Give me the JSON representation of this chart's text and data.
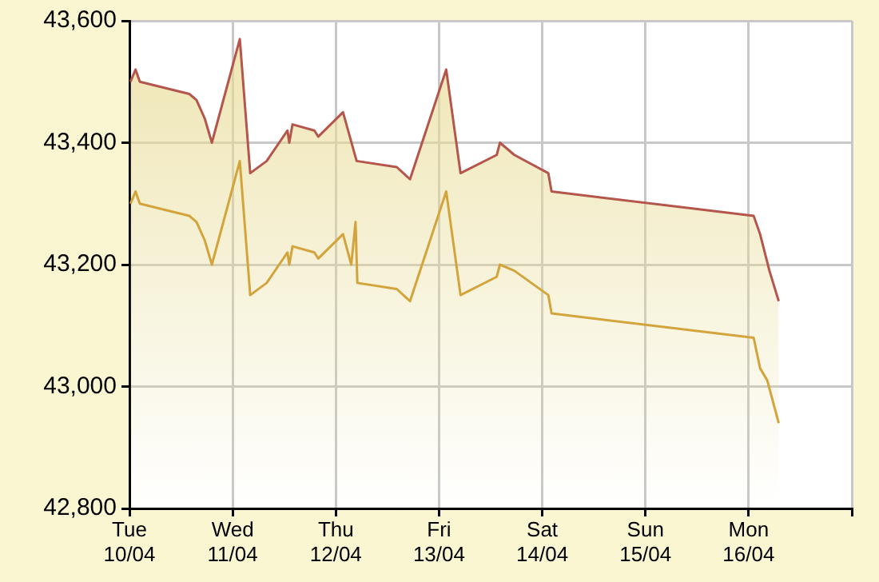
{
  "chart_data": {
    "type": "area",
    "xlim": [
      "--04-10",
      "--04-17"
    ],
    "xticks": [
      {
        "value": "--04-10",
        "label": "Tue\n10/04"
      },
      {
        "value": "--04-11",
        "label": "Wed\n11/04"
      },
      {
        "value": "--04-12",
        "label": "Thu\n12/04"
      },
      {
        "value": "--04-13",
        "label": "Fri\n13/04"
      },
      {
        "value": "--04-14",
        "label": "Sat\n14/04"
      },
      {
        "value": "--04-15",
        "label": "Sun\n15/04"
      },
      {
        "value": "--04-16",
        "label": "Mon\n16/04"
      },
      {
        "value": "--04-17",
        "label": null
      }
    ],
    "ylim": [
      42800,
      43600
    ],
    "yticks": [
      {
        "value": 42800,
        "label": "42,800"
      },
      {
        "value": 43000,
        "label": "43,000"
      },
      {
        "value": 43200,
        "label": "43,200"
      },
      {
        "value": 43400,
        "label": "43,400"
      },
      {
        "value": 43600,
        "label": "43,600"
      }
    ],
    "grid": true,
    "legend": false,
    "marker": "none",
    "line_style": "solid",
    "series": [
      {
        "color": "#b5564c",
        "x": [
          "--04-10T00:15",
          "--04-10T01:25",
          "--04-10T02:25",
          "--04-10T13:55",
          "--04-10T15:35",
          "--04-10T17:30",
          "--04-10T19:10",
          "--04-11T01:40",
          "--04-11T04:05",
          "--04-11T07:55",
          "--04-11T12:45",
          "--04-11T13:10",
          "--04-11T13:55",
          "--04-11T19:00",
          "--04-11T19:55",
          "--04-12T01:40",
          "--04-12T04:50",
          "--04-12T14:10",
          "--04-12T17:15",
          "--04-13T01:40",
          "--04-13T05:00",
          "--04-13T13:25",
          "--04-13T14:10",
          "--04-13T17:30",
          "--04-14T01:25",
          "--04-14T02:10",
          "--04-16T01:10",
          "--04-16T02:40",
          "--04-16T04:50",
          "--04-16T07:00"
        ],
        "values": [
          43500,
          43520,
          43500,
          43480,
          43470,
          43440,
          43400,
          43570,
          43350,
          43370,
          43420,
          43400,
          43430,
          43420,
          43410,
          43450,
          43370,
          43360,
          43340,
          43520,
          43350,
          43380,
          43400,
          43380,
          43350,
          43320,
          43280,
          43250,
          43190,
          43140
        ]
      },
      {
        "type": "line",
        "color": "#d3a43c",
        "x": [
          "--04-10T00:15",
          "--04-10T01:25",
          "--04-10T02:25",
          "--04-10T13:55",
          "--04-10T15:35",
          "--04-10T17:30",
          "--04-10T19:10",
          "--04-11T01:40",
          "--04-11T04:05",
          "--04-11T07:55",
          "--04-11T12:45",
          "--04-11T13:10",
          "--04-11T13:55",
          "--04-11T19:00",
          "--04-11T19:55",
          "--04-12T01:40",
          "--04-12T03:35",
          "--04-12T04:35",
          "--04-12T05:00",
          "--04-12T14:10",
          "--04-12T17:15",
          "--04-13T01:40",
          "--04-13T05:00",
          "--04-13T13:25",
          "--04-13T14:10",
          "--04-13T17:30",
          "--04-14T01:25",
          "--04-14T02:10",
          "--04-16T01:10",
          "--04-16T02:40",
          "--04-16T04:20",
          "--04-16T07:00"
        ],
        "values": [
          43300,
          43320,
          43300,
          43280,
          43270,
          43240,
          43200,
          43370,
          43150,
          43170,
          43220,
          43200,
          43230,
          43220,
          43210,
          43250,
          43200,
          43270,
          43170,
          43160,
          43140,
          43320,
          43150,
          43180,
          43200,
          43190,
          43150,
          43120,
          43080,
          43030,
          43010,
          42940
        ]
      }
    ]
  }
}
